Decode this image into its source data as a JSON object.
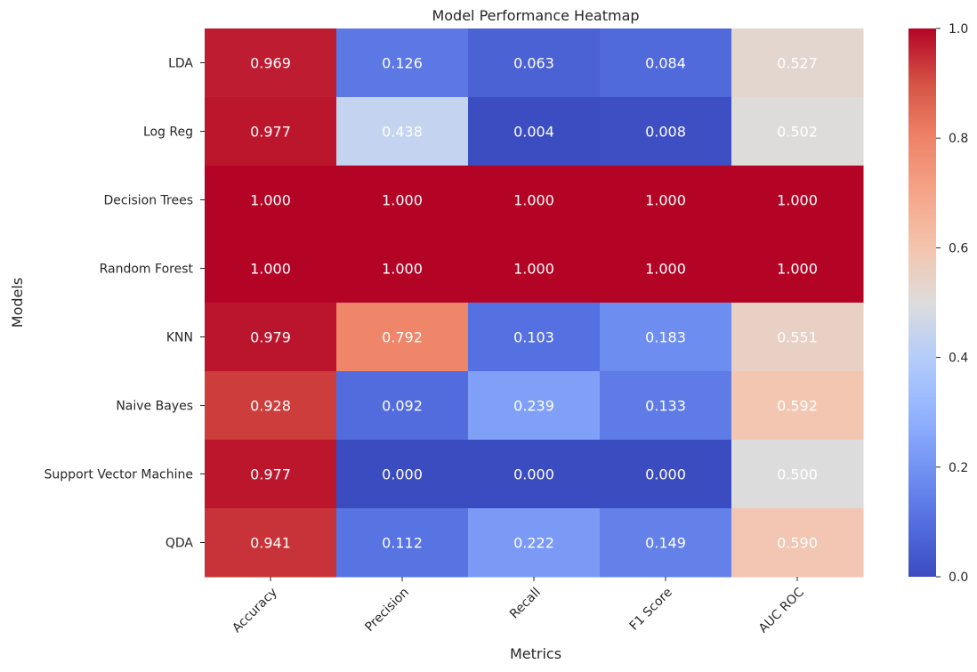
{
  "chart_data": {
    "type": "heatmap",
    "title": "Model Performance Heatmap",
    "xlabel": "Metrics",
    "ylabel": "Models",
    "columns": [
      "Accuracy",
      "Precision",
      "Recall",
      "F1 Score",
      "AUC ROC"
    ],
    "rows": [
      "LDA",
      "Log Reg",
      "Decision Trees",
      "Random Forest",
      "KNN",
      "Naive Bayes",
      "Support Vector Machine",
      "QDA"
    ],
    "values": [
      [
        0.969,
        0.126,
        0.063,
        0.084,
        0.527
      ],
      [
        0.977,
        0.438,
        0.004,
        0.008,
        0.502
      ],
      [
        1.0,
        1.0,
        1.0,
        1.0,
        1.0
      ],
      [
        1.0,
        1.0,
        1.0,
        1.0,
        1.0
      ],
      [
        0.979,
        0.792,
        0.103,
        0.183,
        0.551
      ],
      [
        0.928,
        0.092,
        0.239,
        0.133,
        0.592
      ],
      [
        0.977,
        0.0,
        0.0,
        0.0,
        0.5
      ],
      [
        0.941,
        0.112,
        0.222,
        0.149,
        0.59
      ]
    ],
    "value_format": "0.000",
    "colormap": "coolwarm",
    "colorbar": {
      "range": [
        0.0,
        1.0
      ],
      "ticks": [
        "0.0",
        "0.2",
        "0.4",
        "0.6",
        "0.8",
        "1.0"
      ]
    },
    "colors": {
      "low": "#3b4cc0",
      "mid": "#dddcdc",
      "high": "#b40426"
    },
    "grid": false,
    "colorbar_placement": "right"
  }
}
